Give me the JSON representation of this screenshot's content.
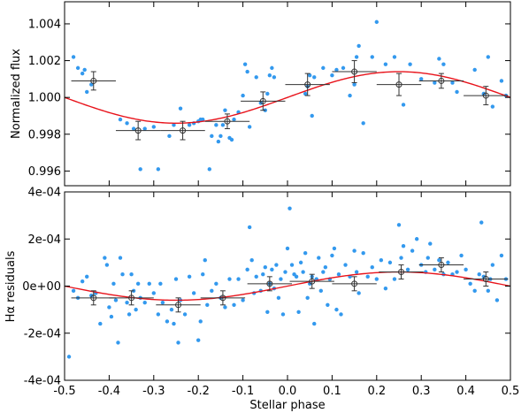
{
  "chart_data": [
    {
      "type": "scatter",
      "panel": "top",
      "ylabel": "Normalized flux",
      "xlim": [
        -0.5,
        0.5
      ],
      "ylim": [
        0.9952,
        1.0052
      ],
      "yticks": [
        {
          "v": 0.996,
          "label": "0.996"
        },
        {
          "v": 0.998,
          "label": "0.998"
        },
        {
          "v": 1.0,
          "label": "1.000"
        },
        {
          "v": 1.002,
          "label": "1.002"
        },
        {
          "v": 1.004,
          "label": "1.004"
        }
      ],
      "colors": {
        "points": "#3399ee",
        "model": "#e8131b",
        "binned": "#333333"
      },
      "model": {
        "offset": 1.0,
        "amplitude": 0.0014,
        "phase0": 0.25
      },
      "points": [
        [
          -0.48,
          1.0022
        ],
        [
          -0.47,
          1.0016
        ],
        [
          -0.46,
          1.0013
        ],
        [
          -0.455,
          1.0015
        ],
        [
          -0.45,
          1.0003
        ],
        [
          -0.44,
          1.0007
        ],
        [
          -0.375,
          0.9988
        ],
        [
          -0.36,
          0.9986
        ],
        [
          -0.345,
          0.9983
        ],
        [
          -0.33,
          0.9961
        ],
        [
          -0.32,
          0.9983
        ],
        [
          -0.3,
          0.9984
        ],
        [
          -0.29,
          0.9961
        ],
        [
          -0.265,
          0.9979
        ],
        [
          -0.255,
          0.9985
        ],
        [
          -0.24,
          0.9994
        ],
        [
          -0.22,
          0.9985
        ],
        [
          -0.21,
          0.9986
        ],
        [
          -0.2,
          0.9987
        ],
        [
          -0.195,
          0.9988
        ],
        [
          -0.19,
          0.9988
        ],
        [
          -0.175,
          0.9961
        ],
        [
          -0.17,
          0.9979
        ],
        [
          -0.16,
          0.9985
        ],
        [
          -0.155,
          0.9976
        ],
        [
          -0.15,
          0.9979
        ],
        [
          -0.145,
          0.9985
        ],
        [
          -0.14,
          0.9993
        ],
        [
          -0.13,
          0.9978
        ],
        [
          -0.125,
          0.9977
        ],
        [
          -0.12,
          0.9988
        ],
        [
          -0.11,
          0.9992
        ],
        [
          -0.1,
          1.0001
        ],
        [
          -0.095,
          1.0018
        ],
        [
          -0.09,
          1.0014
        ],
        [
          -0.085,
          0.9984
        ],
        [
          -0.07,
          1.0011
        ],
        [
          -0.06,
          0.9997
        ],
        [
          -0.05,
          0.9993
        ],
        [
          -0.045,
          1.0002
        ],
        [
          -0.04,
          1.0012
        ],
        [
          -0.035,
          1.0016
        ],
        [
          -0.03,
          1.0011
        ],
        [
          0.04,
          1.0002
        ],
        [
          0.045,
          1.0006
        ],
        [
          0.05,
          1.0012
        ],
        [
          0.055,
          0.999
        ],
        [
          0.06,
          1.0011
        ],
        [
          0.08,
          1.0016
        ],
        [
          0.1,
          1.0012
        ],
        [
          0.11,
          1.0015
        ],
        [
          0.125,
          1.0016
        ],
        [
          0.14,
          1.0001
        ],
        [
          0.15,
          1.0007
        ],
        [
          0.155,
          1.0022
        ],
        [
          0.16,
          1.0028
        ],
        [
          0.17,
          0.9986
        ],
        [
          0.19,
          1.0022
        ],
        [
          0.2,
          1.0041
        ],
        [
          0.22,
          1.0018
        ],
        [
          0.24,
          1.0022
        ],
        [
          0.26,
          0.9996
        ],
        [
          0.275,
          1.0018
        ],
        [
          0.3,
          1.001
        ],
        [
          0.33,
          1.0008
        ],
        [
          0.34,
          1.0021
        ],
        [
          0.35,
          1.0018
        ],
        [
          0.37,
          1.0008
        ],
        [
          0.38,
          1.0003
        ],
        [
          0.42,
          1.0015
        ],
        [
          0.44,
          1.0002
        ],
        [
          0.45,
          1.0022
        ],
        [
          0.46,
          0.9995
        ],
        [
          0.48,
          1.0009
        ],
        [
          0.49,
          1.0001
        ]
      ],
      "binned": [
        {
          "x": -0.435,
          "y": 1.0009,
          "xerr": 0.05,
          "yerr": 0.0005
        },
        {
          "x": -0.335,
          "y": 0.9982,
          "xerr": 0.05,
          "yerr": 0.0005
        },
        {
          "x": -0.235,
          "y": 0.9982,
          "xerr": 0.05,
          "yerr": 0.0005
        },
        {
          "x": -0.135,
          "y": 0.9987,
          "xerr": 0.05,
          "yerr": 0.0004
        },
        {
          "x": -0.055,
          "y": 0.9998,
          "xerr": 0.05,
          "yerr": 0.0005
        },
        {
          "x": 0.045,
          "y": 1.0007,
          "xerr": 0.05,
          "yerr": 0.0006
        },
        {
          "x": 0.15,
          "y": 1.0014,
          "xerr": 0.05,
          "yerr": 0.0006
        },
        {
          "x": 0.25,
          "y": 1.0007,
          "xerr": 0.05,
          "yerr": 0.0006
        },
        {
          "x": 0.345,
          "y": 1.0009,
          "xerr": 0.05,
          "yerr": 0.0004
        },
        {
          "x": 0.445,
          "y": 1.0001,
          "xerr": 0.05,
          "yerr": 0.0005
        }
      ]
    },
    {
      "type": "scatter",
      "panel": "bottom",
      "xlabel": "Stellar phase",
      "ylabel": "Hα residuals",
      "xlim": [
        -0.5,
        0.5
      ],
      "ylim": [
        -0.0004,
        0.0004
      ],
      "xticks": [
        {
          "v": -0.5,
          "label": "-0.5"
        },
        {
          "v": -0.4,
          "label": "-0.4"
        },
        {
          "v": -0.3,
          "label": "-0.3"
        },
        {
          "v": -0.2,
          "label": "-0.2"
        },
        {
          "v": -0.1,
          "label": "-0.1"
        },
        {
          "v": 0.0,
          "label": "0.0"
        },
        {
          "v": 0.1,
          "label": "0.1"
        },
        {
          "v": 0.2,
          "label": "0.2"
        },
        {
          "v": 0.3,
          "label": "0.3"
        },
        {
          "v": 0.4,
          "label": "0.4"
        },
        {
          "v": 0.5,
          "label": "0.5"
        }
      ],
      "yticks": [
        {
          "v": -0.0004,
          "label": "-4e-04"
        },
        {
          "v": -0.0002,
          "label": "-2e-04"
        },
        {
          "v": 0.0,
          "label": "0e+00"
        },
        {
          "v": 0.0002,
          "label": "2e-04"
        },
        {
          "v": 0.0004,
          "label": "4e-04"
        }
      ],
      "colors": {
        "points": "#3399ee",
        "model": "#e8131b",
        "binned": "#333333"
      },
      "model": {
        "offset": 0.0,
        "amplitude": 6e-05,
        "phase0": 0.25
      },
      "points": [
        [
          -0.49,
          -0.0003
        ],
        [
          -0.48,
          -2e-05
        ],
        [
          -0.47,
          -5e-05
        ],
        [
          -0.46,
          2e-05
        ],
        [
          -0.45,
          4e-05
        ],
        [
          -0.44,
          -4e-05
        ],
        [
          -0.43,
          -3e-05
        ],
        [
          -0.42,
          -0.00016
        ],
        [
          -0.41,
          0.00012
        ],
        [
          -0.405,
          9e-05
        ],
        [
          -0.4,
          -9e-05
        ],
        [
          -0.395,
          -0.00013
        ],
        [
          -0.39,
          1e-05
        ],
        [
          -0.385,
          -6e-05
        ],
        [
          -0.38,
          -0.00024
        ],
        [
          -0.375,
          0.00012
        ],
        [
          -0.37,
          5e-05
        ],
        [
          -0.36,
          -7e-05
        ],
        [
          -0.355,
          -0.00012
        ],
        [
          -0.35,
          5e-05
        ],
        [
          -0.345,
          -2e-05
        ],
        [
          -0.34,
          -0.0001
        ],
        [
          -0.335,
          1e-05
        ],
        [
          -0.33,
          -5e-05
        ],
        [
          -0.32,
          -7e-05
        ],
        [
          -0.31,
          1e-05
        ],
        [
          -0.3,
          -3e-05
        ],
        [
          -0.29,
          -0.00012
        ],
        [
          -0.285,
          1e-05
        ],
        [
          -0.28,
          -7e-05
        ],
        [
          -0.27,
          -0.00015
        ],
        [
          -0.26,
          -0.0001
        ],
        [
          -0.255,
          -0.00016
        ],
        [
          -0.25,
          3e-05
        ],
        [
          -0.245,
          -0.00024
        ],
        [
          -0.24,
          -6e-05
        ],
        [
          -0.23,
          -0.00012
        ],
        [
          -0.22,
          4e-05
        ],
        [
          -0.21,
          -3e-05
        ],
        [
          -0.2,
          -0.00023
        ],
        [
          -0.195,
          -0.00015
        ],
        [
          -0.19,
          5e-05
        ],
        [
          -0.185,
          0.00011
        ],
        [
          -0.18,
          -8e-05
        ],
        [
          -0.17,
          -2e-05
        ],
        [
          -0.16,
          1e-05
        ],
        [
          -0.15,
          -5e-05
        ],
        [
          -0.14,
          -9e-05
        ],
        [
          -0.13,
          3e-05
        ],
        [
          -0.12,
          -8e-05
        ],
        [
          -0.11,
          3e-05
        ],
        [
          -0.1,
          -6e-05
        ],
        [
          -0.09,
          7e-05
        ],
        [
          -0.085,
          0.00025
        ],
        [
          -0.08,
          0.00011
        ],
        [
          -0.075,
          -3e-05
        ],
        [
          -0.07,
          4e-05
        ],
        [
          -0.06,
          -2e-05
        ],
        [
          -0.055,
          5e-05
        ],
        [
          -0.05,
          8e-05
        ],
        [
          -0.045,
          -0.00011
        ],
        [
          -0.04,
          1e-05
        ],
        [
          -0.035,
          7e-05
        ],
        [
          -0.03,
          -1e-05
        ],
        [
          -0.025,
          9e-05
        ],
        [
          -0.02,
          -5e-05
        ],
        [
          -0.015,
          3e-05
        ],
        [
          -0.01,
          -0.00012
        ],
        [
          -0.005,
          6e-05
        ],
        [
          0.0,
          0.00016
        ],
        [
          0.005,
          0.00033
        ],
        [
          0.01,
          9e-05
        ],
        [
          0.015,
          5e-05
        ],
        [
          0.02,
          4e-05
        ],
        [
          0.025,
          -0.00011
        ],
        [
          0.03,
          0.0001
        ],
        [
          0.035,
          6e-05
        ],
        [
          0.04,
          0.00014
        ],
        [
          0.045,
          -5e-05
        ],
        [
          0.05,
          1e-05
        ],
        [
          0.055,
          4e-05
        ],
        [
          0.06,
          -0.00016
        ],
        [
          0.065,
          3e-05
        ],
        [
          0.07,
          0.00012
        ],
        [
          0.075,
          -2e-05
        ],
        [
          0.08,
          6e-05
        ],
        [
          0.085,
          8e-05
        ],
        [
          0.09,
          -8e-05
        ],
        [
          0.095,
          3e-05
        ],
        [
          0.1,
          0.00013
        ],
        [
          0.105,
          0.00016
        ],
        [
          0.11,
          -0.0001
        ],
        [
          0.115,
          5e-05
        ],
        [
          0.12,
          -0.00012
        ],
        [
          0.13,
          9e-05
        ],
        [
          0.14,
          4e-05
        ],
        [
          0.15,
          0.00015
        ],
        [
          0.155,
          6e-05
        ],
        [
          0.16,
          -3e-05
        ],
        [
          0.17,
          0.00014
        ],
        [
          0.18,
          4e-05
        ],
        [
          0.19,
          8e-05
        ],
        [
          0.2,
          3e-05
        ],
        [
          0.21,
          0.00011
        ],
        [
          0.22,
          -1e-05
        ],
        [
          0.23,
          0.0001
        ],
        [
          0.24,
          3e-05
        ],
        [
          0.25,
          0.00026
        ],
        [
          0.255,
          0.00012
        ],
        [
          0.26,
          0.00017
        ],
        [
          0.27,
          7e-05
        ],
        [
          0.28,
          0.00015
        ],
        [
          0.29,
          0.0002
        ],
        [
          0.3,
          9e-05
        ],
        [
          0.31,
          6e-05
        ],
        [
          0.315,
          0.00012
        ],
        [
          0.32,
          0.00018
        ],
        [
          0.33,
          7e-05
        ],
        [
          0.34,
          0.00011
        ],
        [
          0.35,
          5e-05
        ],
        [
          0.36,
          0.0001
        ],
        [
          0.37,
          5e-05
        ],
        [
          0.38,
          6e-05
        ],
        [
          0.39,
          0.00013
        ],
        [
          0.4,
          7e-05
        ],
        [
          0.41,
          1e-05
        ],
        [
          0.42,
          -2e-05
        ],
        [
          0.43,
          5e-05
        ],
        [
          0.435,
          0.00027
        ],
        [
          0.44,
          4e-05
        ],
        [
          0.45,
          -2e-05
        ],
        [
          0.455,
          3e-05
        ],
        [
          0.46,
          9e-05
        ],
        [
          0.47,
          -6e-05
        ],
        [
          0.48,
          0.00013
        ],
        [
          0.49,
          3e-05
        ]
      ],
      "binned": [
        {
          "x": -0.435,
          "y": -5e-05,
          "xerr": 0.05,
          "yerr": 3e-05
        },
        {
          "x": -0.35,
          "y": -5e-05,
          "xerr": 0.05,
          "yerr": 3e-05
        },
        {
          "x": -0.245,
          "y": -8e-05,
          "xerr": 0.05,
          "yerr": 3e-05
        },
        {
          "x": -0.145,
          "y": -5e-05,
          "xerr": 0.05,
          "yerr": 3e-05
        },
        {
          "x": -0.04,
          "y": 1e-05,
          "xerr": 0.05,
          "yerr": 3e-05
        },
        {
          "x": 0.055,
          "y": 2e-05,
          "xerr": 0.05,
          "yerr": 3e-05
        },
        {
          "x": 0.15,
          "y": 1e-05,
          "xerr": 0.05,
          "yerr": 3e-05
        },
        {
          "x": 0.255,
          "y": 6e-05,
          "xerr": 0.05,
          "yerr": 3e-05
        },
        {
          "x": 0.345,
          "y": 9e-05,
          "xerr": 0.05,
          "yerr": 3e-05
        },
        {
          "x": 0.445,
          "y": 3e-05,
          "xerr": 0.05,
          "yerr": 3e-05
        }
      ]
    }
  ]
}
